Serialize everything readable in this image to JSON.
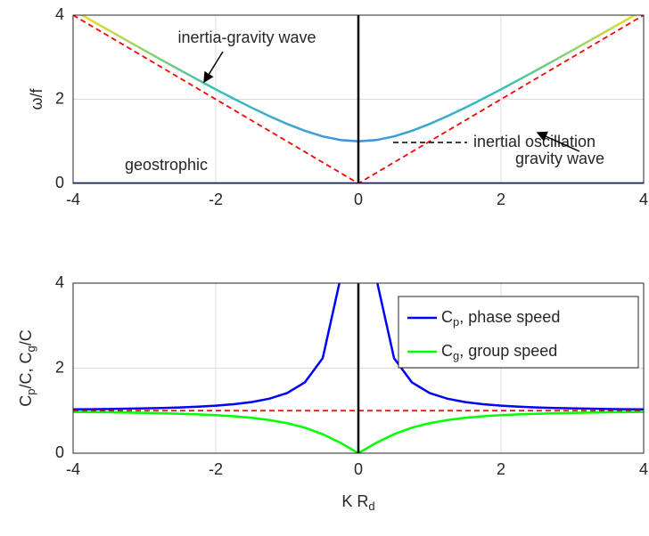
{
  "chart_data": [
    {
      "type": "line",
      "ylabel": "ω/f",
      "xlim": [
        -4,
        4
      ],
      "ylim": [
        0,
        4
      ],
      "xticks": [
        -4,
        -2,
        0,
        2,
        4
      ],
      "yticks": [
        0,
        2,
        4
      ],
      "grid": true,
      "vlines": [
        0
      ],
      "series": [
        {
          "name": "ω/f",
          "colors": [
            "#f5e022",
            "#39c0b5",
            "#3b8ee6",
            "#39c0b5",
            "#f5e022"
          ],
          "x": [
            -4,
            -3.75,
            -3.5,
            -3.25,
            -3,
            -2.75,
            -2.5,
            -2.25,
            -2,
            -1.75,
            -1.5,
            -1.25,
            -1,
            -0.75,
            -0.5,
            -0.25,
            0,
            0.25,
            0.5,
            0.75,
            1,
            1.25,
            1.5,
            1.75,
            2,
            2.25,
            2.5,
            2.75,
            3,
            3.25,
            3.5,
            3.75,
            4
          ],
          "values": [
            4.1231,
            3.881,
            3.6401,
            3.4004,
            3.1623,
            2.9262,
            2.6926,
            2.4622,
            2.2361,
            2.0156,
            1.8028,
            1.6008,
            1.4142,
            1.25,
            1.118,
            1.0308,
            1,
            1.0308,
            1.118,
            1.25,
            1.4142,
            1.6008,
            1.8028,
            2.0156,
            2.2361,
            2.4622,
            2.6926,
            2.9262,
            3.1623,
            3.4004,
            3.6401,
            3.881,
            4.1231
          ]
        },
        {
          "name": "|K|",
          "color": "#ff0000",
          "dash": true,
          "x": [
            -4,
            0,
            4
          ],
          "values": [
            4,
            0,
            4
          ]
        },
        {
          "name": "geostrophic",
          "color": "#0000ff",
          "x": [
            -4,
            4
          ],
          "values": [
            0,
            0
          ]
        }
      ],
      "annotations": [
        "inertia-gravity wave",
        "gravity wave",
        "inertial oscillation",
        "geostrophic"
      ]
    },
    {
      "type": "line",
      "ylabel_parts": [
        [
          "C",
          false
        ],
        [
          "p",
          true
        ],
        [
          "/C,  C",
          false
        ],
        [
          "g",
          true
        ],
        [
          "/C",
          false
        ]
      ],
      "xlabel_parts": [
        [
          "K R",
          false
        ],
        [
          "d",
          true
        ]
      ],
      "xlim": [
        -4,
        4
      ],
      "ylim": [
        0,
        4
      ],
      "xticks": [
        -4,
        -2,
        0,
        2,
        4
      ],
      "yticks": [
        0,
        2,
        4
      ],
      "grid": true,
      "vlines": [
        0
      ],
      "legend": "upper right",
      "series": [
        {
          "name_parts": [
            [
              "C",
              false
            ],
            [
              "p",
              true
            ],
            [
              ", phase speed",
              false
            ]
          ],
          "color": "#0000ff",
          "x": [
            -4,
            -3.75,
            -3.5,
            -3.25,
            -3,
            -2.75,
            -2.5,
            -2.25,
            -2,
            -1.75,
            -1.5,
            -1.25,
            -1,
            -0.75,
            -0.5,
            -0.25,
            0,
            0.25,
            0.5,
            0.75,
            1,
            1.25,
            1.5,
            1.75,
            2,
            2.25,
            2.5,
            2.75,
            3,
            3.25,
            3.5,
            3.75,
            4
          ],
          "values": [
            1.031,
            1.035,
            1.04,
            1.046,
            1.054,
            1.064,
            1.077,
            1.094,
            1.118,
            1.152,
            1.202,
            1.281,
            1.414,
            1.667,
            2.236,
            4.123,
            null,
            4.123,
            2.236,
            1.667,
            1.414,
            1.281,
            1.202,
            1.152,
            1.118,
            1.094,
            1.077,
            1.064,
            1.054,
            1.046,
            1.04,
            1.035,
            1.031
          ]
        },
        {
          "name_parts": [
            [
              "C",
              false
            ],
            [
              "g",
              true
            ],
            [
              ", group speed",
              false
            ]
          ],
          "color": "#00ff00",
          "x": [
            -4,
            -3.75,
            -3.5,
            -3.25,
            -3,
            -2.75,
            -2.5,
            -2.25,
            -2,
            -1.75,
            -1.5,
            -1.25,
            -1,
            -0.75,
            -0.5,
            -0.25,
            0,
            0.25,
            0.5,
            0.75,
            1,
            1.25,
            1.5,
            1.75,
            2,
            2.25,
            2.5,
            2.75,
            3,
            3.25,
            3.5,
            3.75,
            4
          ],
          "values": [
            0.97,
            0.966,
            0.962,
            0.956,
            0.949,
            0.94,
            0.928,
            0.914,
            0.894,
            0.868,
            0.832,
            0.781,
            0.707,
            0.6,
            0.447,
            0.243,
            0,
            0.243,
            0.447,
            0.6,
            0.707,
            0.781,
            0.832,
            0.868,
            0.894,
            0.914,
            0.928,
            0.94,
            0.949,
            0.956,
            0.962,
            0.966,
            0.97
          ]
        },
        {
          "name": "1",
          "color": "#ff0000",
          "dash": true,
          "legend": false,
          "x": [
            -4,
            4
          ],
          "values": [
            1,
            1
          ]
        }
      ]
    }
  ]
}
